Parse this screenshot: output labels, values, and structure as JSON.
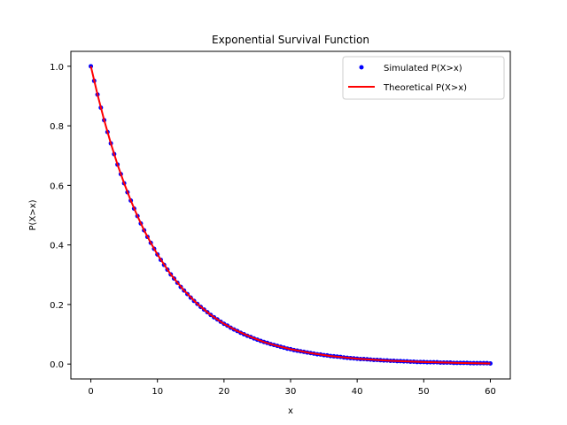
{
  "chart_data": {
    "type": "line",
    "title": "Exponential Survival Function",
    "xlabel": "x",
    "ylabel": "P(X>x)",
    "xlim": [
      -3,
      63
    ],
    "ylim": [
      -0.05,
      1.05
    ],
    "x_ticks": [
      0,
      10,
      20,
      30,
      40,
      50,
      60
    ],
    "y_ticks": [
      0.0,
      0.2,
      0.4,
      0.6,
      0.8,
      1.0
    ],
    "x_tick_labels": [
      "0",
      "10",
      "20",
      "30",
      "40",
      "50",
      "60"
    ],
    "y_tick_labels": [
      "0.0",
      "0.2",
      "0.4",
      "0.6",
      "0.8",
      "1.0"
    ],
    "grid": false,
    "legend_position": "top-right",
    "series": [
      {
        "name": "Simulated P(X>x)",
        "style": "points",
        "color": "#0000ff",
        "x": [
          0,
          0.5,
          1,
          1.5,
          2,
          2.5,
          3,
          3.5,
          4,
          4.5,
          5,
          5.5,
          6,
          6.5,
          7,
          7.5,
          8,
          8.5,
          9,
          9.5,
          10,
          10.5,
          11,
          11.5,
          12,
          12.5,
          13,
          13.5,
          14,
          14.5,
          15,
          15.5,
          16,
          16.5,
          17,
          17.5,
          18,
          18.5,
          19,
          19.5,
          20,
          20.5,
          21,
          21.5,
          22,
          22.5,
          23,
          23.5,
          24,
          24.5,
          25,
          25.5,
          26,
          26.5,
          27,
          27.5,
          28,
          28.5,
          29,
          29.5,
          30,
          30.5,
          31,
          31.5,
          32,
          32.5,
          33,
          33.5,
          34,
          34.5,
          35,
          35.5,
          36,
          36.5,
          37,
          37.5,
          38,
          38.5,
          39,
          39.5,
          40,
          40.5,
          41,
          41.5,
          42,
          42.5,
          43,
          43.5,
          44,
          44.5,
          45,
          45.5,
          46,
          46.5,
          47,
          47.5,
          48,
          48.5,
          49,
          49.5,
          50,
          50.5,
          51,
          51.5,
          52,
          52.5,
          53,
          53.5,
          54,
          54.5,
          55,
          55.5,
          56,
          56.5,
          57,
          57.5,
          58,
          58.5,
          59,
          59.5,
          60
        ],
        "y": [
          1.0,
          0.951,
          0.905,
          0.861,
          0.819,
          0.779,
          0.741,
          0.705,
          0.67,
          0.638,
          0.607,
          0.577,
          0.549,
          0.522,
          0.497,
          0.472,
          0.449,
          0.427,
          0.407,
          0.387,
          0.368,
          0.35,
          0.333,
          0.317,
          0.301,
          0.287,
          0.273,
          0.259,
          0.247,
          0.235,
          0.223,
          0.212,
          0.202,
          0.192,
          0.183,
          0.174,
          0.165,
          0.157,
          0.15,
          0.142,
          0.135,
          0.129,
          0.122,
          0.116,
          0.111,
          0.105,
          0.1,
          0.095,
          0.091,
          0.086,
          0.082,
          0.078,
          0.074,
          0.071,
          0.067,
          0.064,
          0.061,
          0.058,
          0.055,
          0.052,
          0.05,
          0.047,
          0.045,
          0.043,
          0.041,
          0.039,
          0.037,
          0.035,
          0.033,
          0.032,
          0.03,
          0.029,
          0.027,
          0.026,
          0.025,
          0.024,
          0.022,
          0.021,
          0.02,
          0.019,
          0.018,
          0.017,
          0.017,
          0.016,
          0.015,
          0.014,
          0.014,
          0.013,
          0.012,
          0.012,
          0.011,
          0.011,
          0.01,
          0.01,
          0.009,
          0.009,
          0.008,
          0.008,
          0.007,
          0.007,
          0.007,
          0.006,
          0.006,
          0.006,
          0.006,
          0.005,
          0.005,
          0.005,
          0.005,
          0.004,
          0.004,
          0.004,
          0.004,
          0.004,
          0.003,
          0.003,
          0.003,
          0.003,
          0.003,
          0.003,
          0.002
        ]
      },
      {
        "name": "Theoretical P(X>x)",
        "style": "line",
        "color": "#ff0000",
        "x": [
          0,
          1,
          2,
          3,
          4,
          5,
          6,
          7,
          8,
          9,
          10,
          12,
          14,
          16,
          18,
          20,
          22,
          24,
          26,
          28,
          30,
          33,
          36,
          40,
          45,
          50,
          55,
          60
        ],
        "y": [
          1.0,
          0.905,
          0.819,
          0.741,
          0.67,
          0.607,
          0.549,
          0.497,
          0.449,
          0.407,
          0.368,
          0.301,
          0.247,
          0.202,
          0.165,
          0.135,
          0.111,
          0.091,
          0.074,
          0.061,
          0.05,
          0.037,
          0.027,
          0.018,
          0.011,
          0.007,
          0.004,
          0.002
        ]
      }
    ]
  }
}
